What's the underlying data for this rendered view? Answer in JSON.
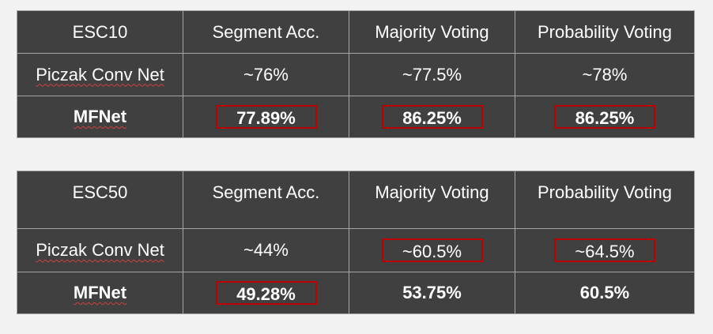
{
  "tables": [
    {
      "header": [
        "ESC10",
        "Segment Acc.",
        "Majority Voting",
        "Probability Voting"
      ],
      "rows": [
        [
          "Piczak Conv Net",
          "~76%",
          "~77.5%",
          "~78%"
        ],
        [
          "MFNet",
          "77.89%",
          "86.25%",
          "86.25%"
        ]
      ]
    },
    {
      "header": [
        "ESC50",
        "Segment Acc.",
        "Majority Voting",
        "Probability Voting"
      ],
      "rows": [
        [
          "Piczak Conv Net",
          "~44%",
          "~60.5%",
          "~64.5%"
        ],
        [
          "MFNet",
          "49.28%",
          "53.75%",
          "60.5%"
        ]
      ]
    }
  ],
  "colors": {
    "background": "#f2f2f2",
    "cell_fill": "#404040",
    "grid_line": "#a6a6a6",
    "highlight_box": "#c00000",
    "text": "#ffffff"
  }
}
